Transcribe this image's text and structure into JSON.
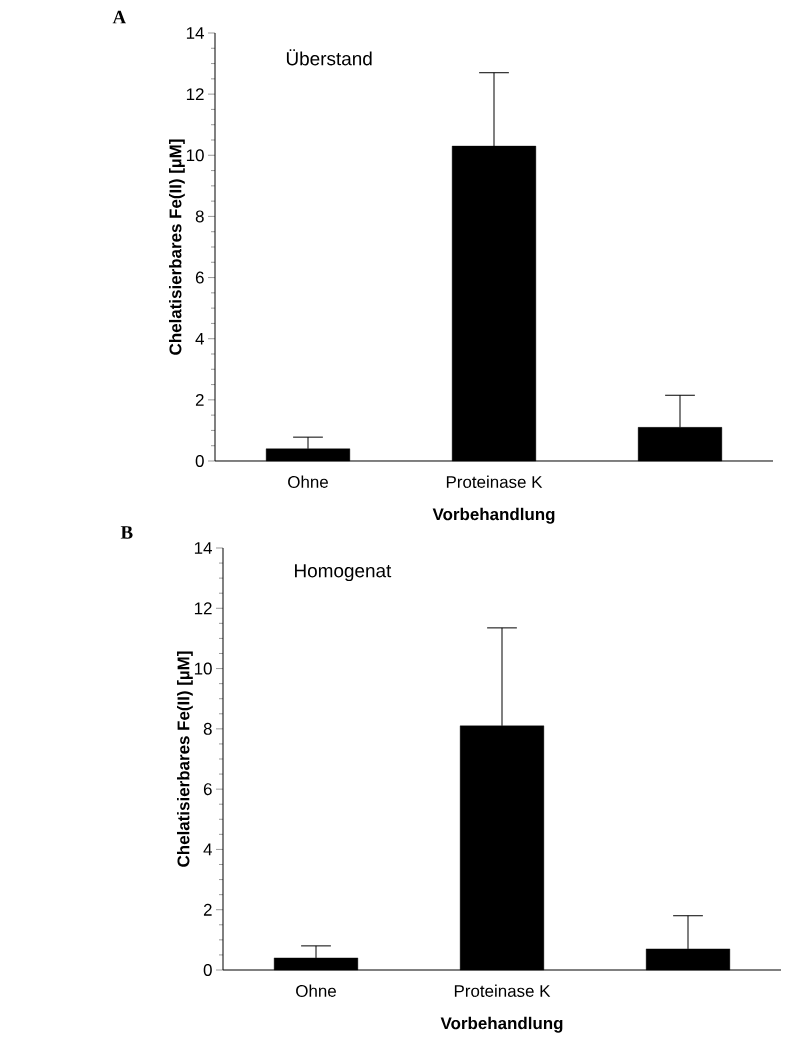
{
  "chart_data": [
    {
      "type": "bar",
      "title": "A",
      "annotations": [
        "Überstand"
      ],
      "categories": [
        "Ohne",
        "Proteinase K",
        null
      ],
      "values": [
        0.4,
        10.3,
        1.1
      ],
      "errors": [
        [
          0.4,
          0.78
        ],
        [
          10.3,
          12.7
        ],
        [
          1.1,
          2.15
        ]
      ],
      "color": "#000000",
      "xlabel": "Vorbehandlung",
      "ylabel": "Chelatisierbares Fe(II) [µM]",
      "ylim": [
        0,
        14
      ],
      "yticks": [
        0,
        2,
        4,
        6,
        8,
        10,
        12,
        14
      ]
    },
    {
      "type": "bar",
      "title": "B",
      "annotations": [
        "Homogenat"
      ],
      "categories": [
        "Ohne",
        "Proteinase K",
        null
      ],
      "values": [
        0.4,
        8.1,
        0.7
      ],
      "errors": [
        [
          0.4,
          0.8
        ],
        [
          8.1,
          11.35
        ],
        [
          0.7,
          1.8
        ]
      ],
      "color": "#000000",
      "xlabel": "Vorbehandlung",
      "ylabel": "Chelatisierbares Fe(II) [µM]",
      "ylim": [
        0,
        14
      ],
      "yticks": [
        0,
        2,
        4,
        6,
        8,
        10,
        12,
        14
      ]
    }
  ]
}
